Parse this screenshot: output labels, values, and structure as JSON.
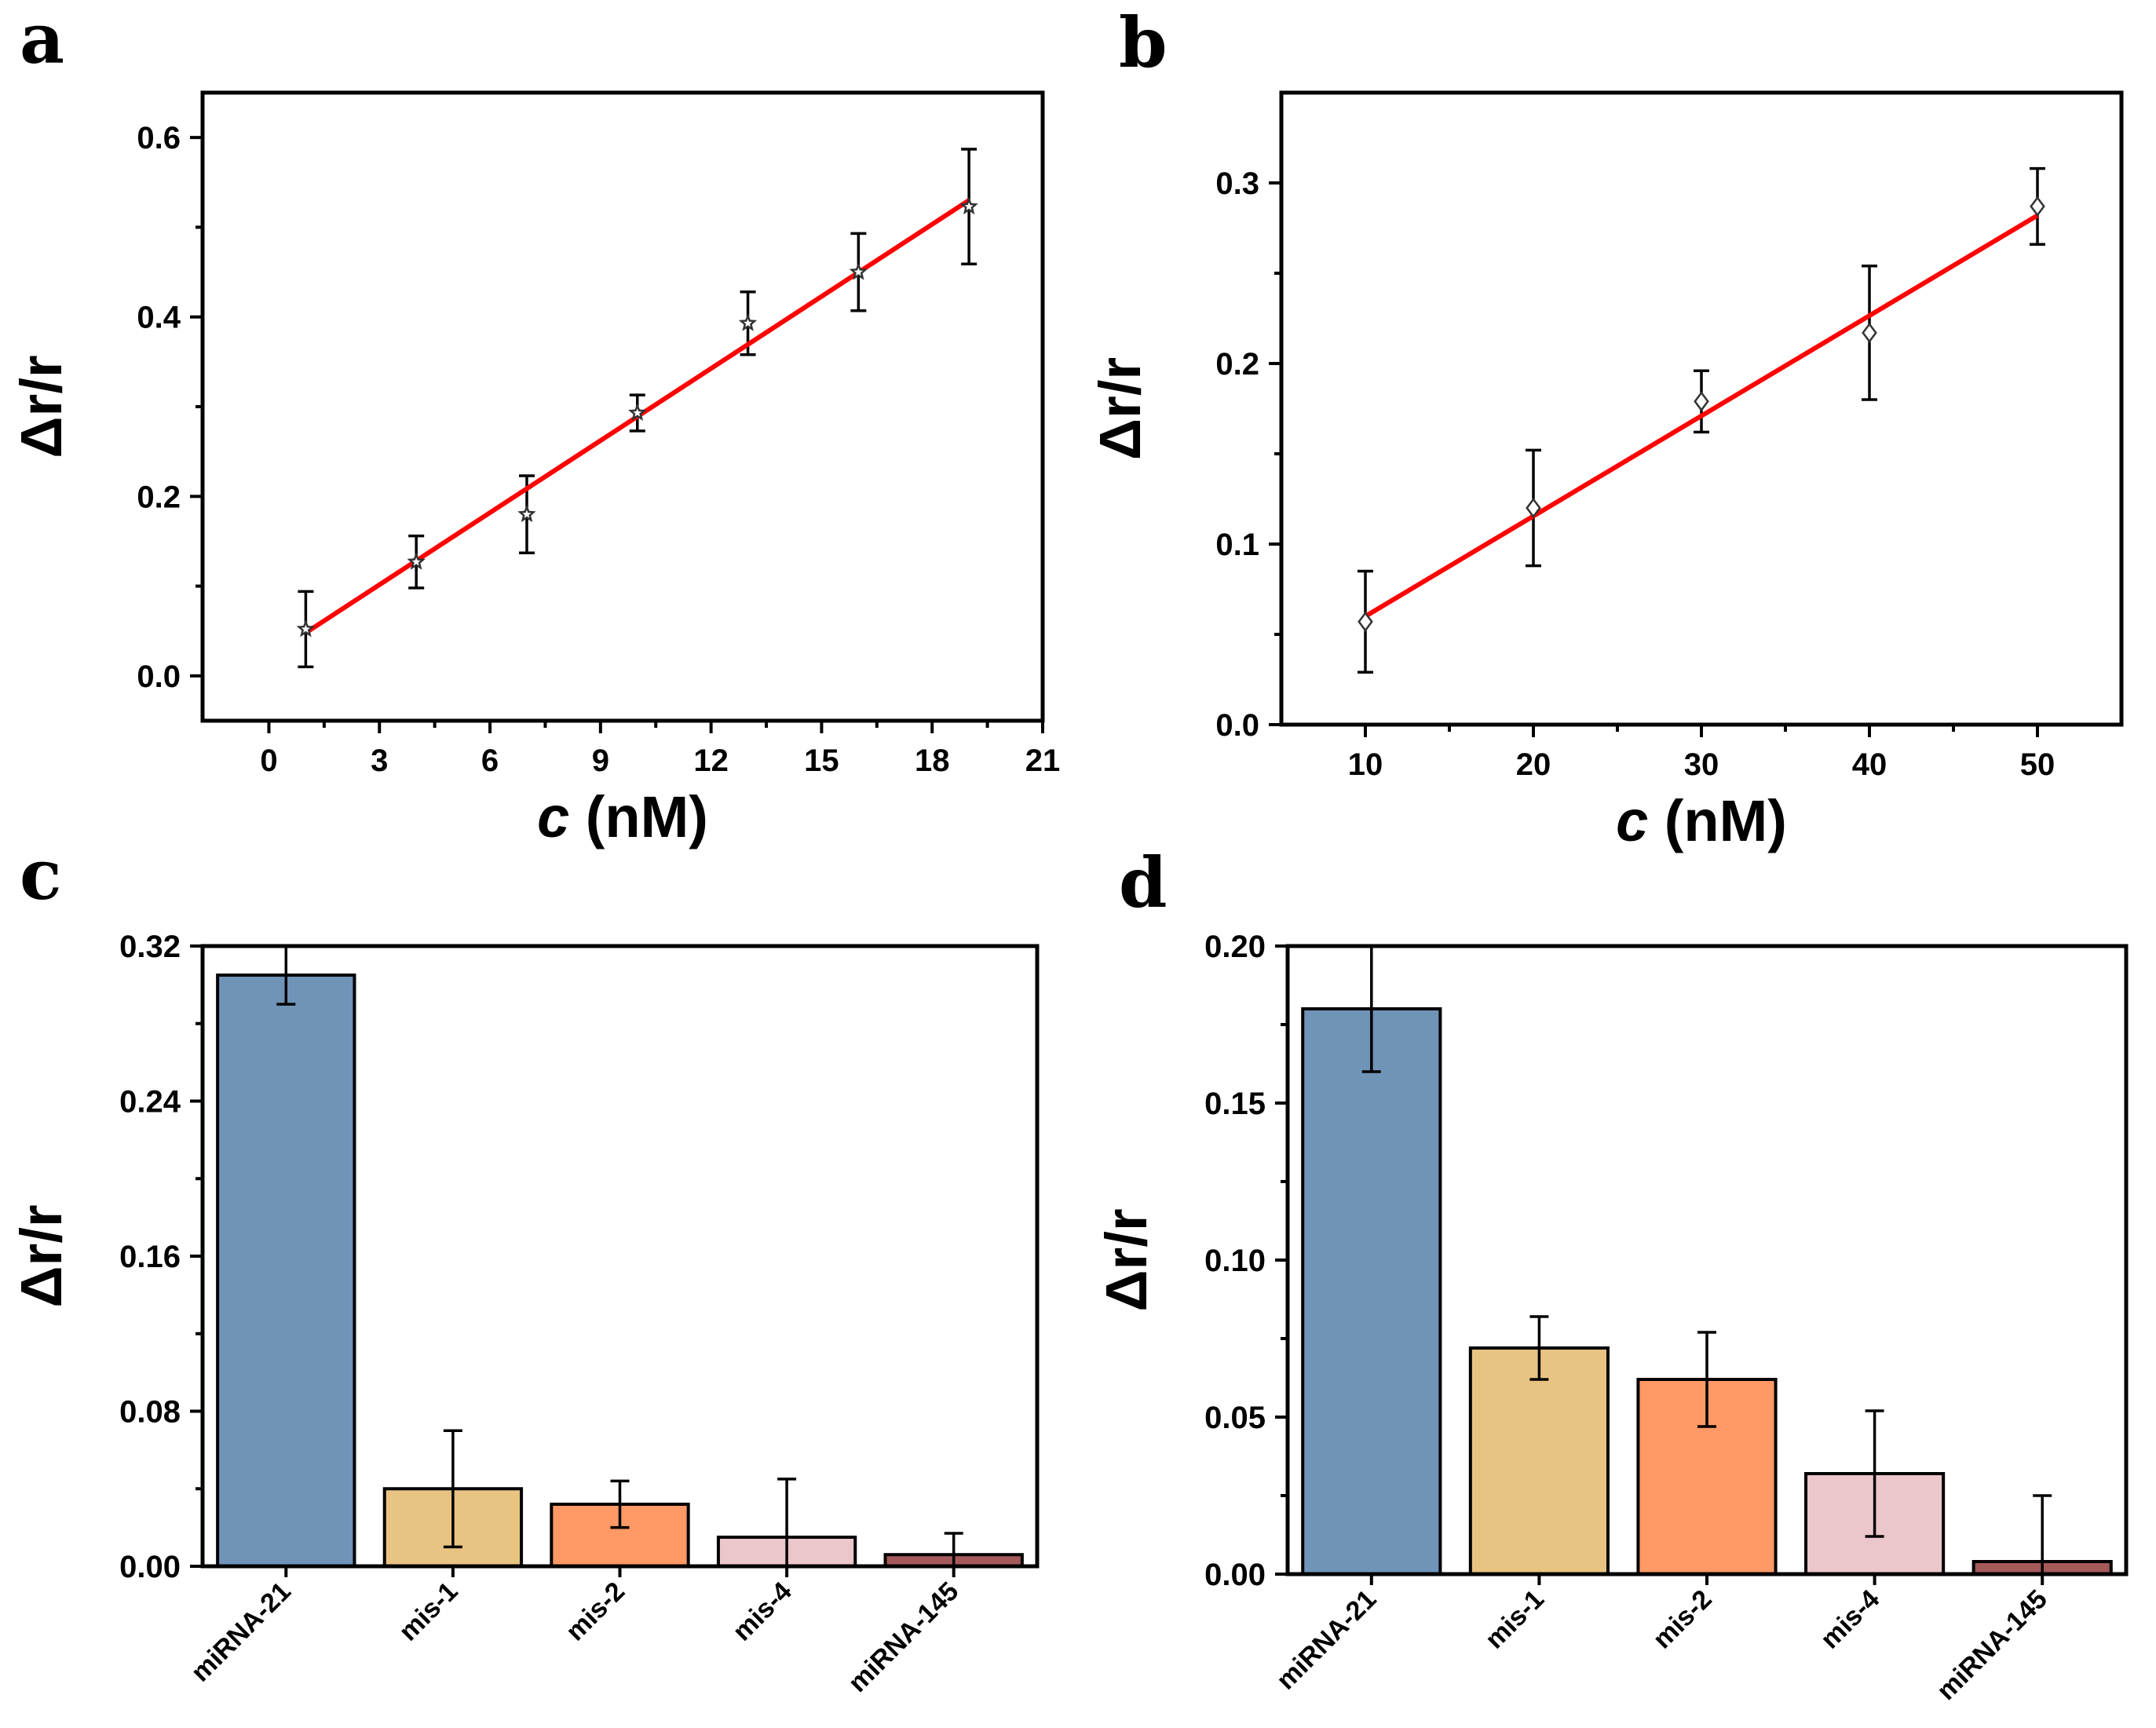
{
  "chart_data": [
    {
      "panel": "a",
      "type": "scatter",
      "xlabel": "c",
      "xlabel_unit": "(nM)",
      "ylabel": "Δr/r",
      "xlim": [
        -1.8,
        21
      ],
      "ylim": [
        -0.05,
        0.65
      ],
      "xticks": [
        0,
        3,
        6,
        9,
        12,
        15,
        18,
        21
      ],
      "xtick_labels": [
        "0",
        "3",
        "6",
        "9",
        "12",
        "15",
        "18",
        "21"
      ],
      "yticks": [
        0.0,
        0.2,
        0.4,
        0.6
      ],
      "ytick_labels": [
        "0.0",
        "0.2",
        "0.4",
        "0.6"
      ],
      "marker": "star",
      "x": [
        1,
        4,
        7,
        10,
        13,
        16,
        19
      ],
      "y": [
        0.052,
        0.127,
        0.18,
        0.293,
        0.393,
        0.45,
        0.523
      ],
      "err": [
        0.042,
        0.029,
        0.043,
        0.02,
        0.035,
        0.043,
        0.064
      ],
      "fit": {
        "x": [
          1,
          19
        ],
        "y": [
          0.048,
          0.53
        ]
      },
      "fit_color": "#ff0000"
    },
    {
      "panel": "b",
      "type": "scatter",
      "xlabel": "c",
      "xlabel_unit": "(nM)",
      "ylabel": "Δr/r",
      "xlim": [
        5,
        55
      ],
      "ylim": [
        0.0,
        0.35
      ],
      "xticks": [
        10,
        20,
        30,
        40,
        50
      ],
      "xtick_labels": [
        "10",
        "20",
        "30",
        "40",
        "50"
      ],
      "yticks": [
        0.0,
        0.1,
        0.2,
        0.3
      ],
      "ytick_labels": [
        "0.0",
        "0.1",
        "0.2",
        "0.3"
      ],
      "marker": "diamond",
      "x": [
        10,
        20,
        30,
        40,
        50
      ],
      "y": [
        0.057,
        0.12,
        0.179,
        0.217,
        0.287
      ],
      "err": [
        0.028,
        0.032,
        0.017,
        0.037,
        0.021
      ],
      "fit": {
        "x": [
          10,
          50
        ],
        "y": [
          0.06,
          0.282
        ]
      },
      "fit_color": "#ff0000"
    },
    {
      "panel": "c",
      "type": "bar",
      "ylabel": "Δr/r",
      "categories": [
        "miRNA-21",
        "mis-1",
        "mis-2",
        "mis-4",
        "miRNA-145"
      ],
      "values": [
        0.305,
        0.04,
        0.032,
        0.015,
        0.006
      ],
      "err": [
        0.015,
        0.03,
        0.012,
        0.03,
        0.011
      ],
      "colors": [
        "#7094b8",
        "#e8c382",
        "#ff9966",
        "#ebc6cb",
        "#a55a5a"
      ],
      "ylim": [
        0.0,
        0.32
      ],
      "yticks": [
        0.0,
        0.08,
        0.16,
        0.24,
        0.32
      ],
      "ytick_labels": [
        "0.00",
        "0.08",
        "0.16",
        "0.24",
        "0.32"
      ]
    },
    {
      "panel": "d",
      "type": "bar",
      "ylabel": "Δr/r",
      "categories": [
        "miRNA-21",
        "mis-1",
        "mis-2",
        "mis-4",
        "miRNA-145"
      ],
      "values": [
        0.18,
        0.072,
        0.062,
        0.032,
        0.004
      ],
      "err": [
        0.02,
        0.01,
        0.015,
        0.02,
        0.021
      ],
      "colors": [
        "#7094b8",
        "#e8c382",
        "#ff9966",
        "#ebc6cb",
        "#a55a5a"
      ],
      "ylim": [
        0.0,
        0.2
      ],
      "yticks": [
        0.0,
        0.05,
        0.1,
        0.15,
        0.2
      ],
      "ytick_labels": [
        "0.00",
        "0.05",
        "0.10",
        "0.15",
        "0.20"
      ]
    }
  ]
}
